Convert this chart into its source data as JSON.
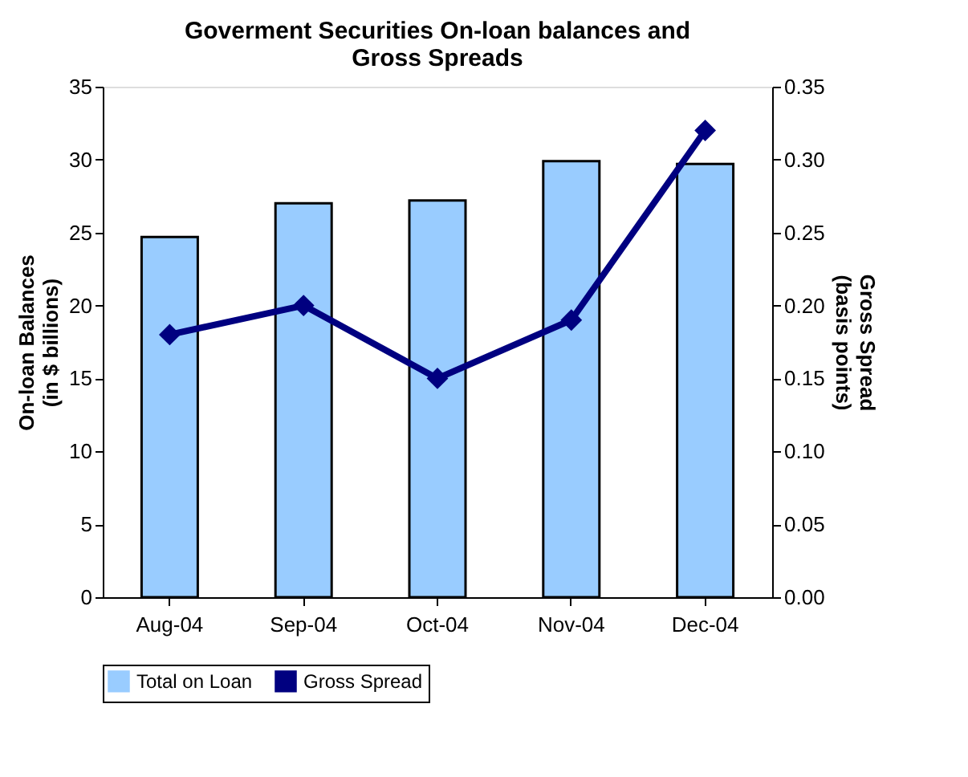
{
  "chart_data": {
    "type": "bar",
    "title": "Goverment Securities On-loan balances and Gross Spreads",
    "ylabel": "On-loan Balances\n(in $ billions)",
    "y2label": "Gross Spread\n(basis points)",
    "categories": [
      "Aug-04",
      "Sep-04",
      "Oct-04",
      "Nov-04",
      "Dec-04"
    ],
    "series": [
      {
        "name": "Total on Loan",
        "color": "#99ccff",
        "values": [
          24.7,
          27.0,
          27.2,
          29.9,
          29.7
        ]
      },
      {
        "name": "Gross Spread",
        "color": "#000080",
        "type": "line",
        "axis": "y2",
        "marker": "diamond",
        "line_style": "solid",
        "values": [
          0.18,
          0.2,
          0.15,
          0.19,
          0.32
        ]
      }
    ],
    "ylim": [
      0,
      35
    ],
    "yticks": [
      0,
      5,
      10,
      15,
      20,
      25,
      30,
      35
    ],
    "y2lim": [
      0,
      0.35
    ],
    "y2ticks": [
      {
        "value": 0,
        "label": "0.00"
      },
      {
        "value": 0.05,
        "label": "0.05"
      },
      {
        "value": 0.1,
        "label": "0.10"
      },
      {
        "value": 0.15,
        "label": "0.15"
      },
      {
        "value": 0.2,
        "label": "0.20"
      },
      {
        "value": 0.25,
        "label": "0.25"
      },
      {
        "value": 0.3,
        "label": "0.30"
      },
      {
        "value": 0.35,
        "label": "0.35"
      }
    ],
    "grid": false,
    "legend": "bottom"
  }
}
